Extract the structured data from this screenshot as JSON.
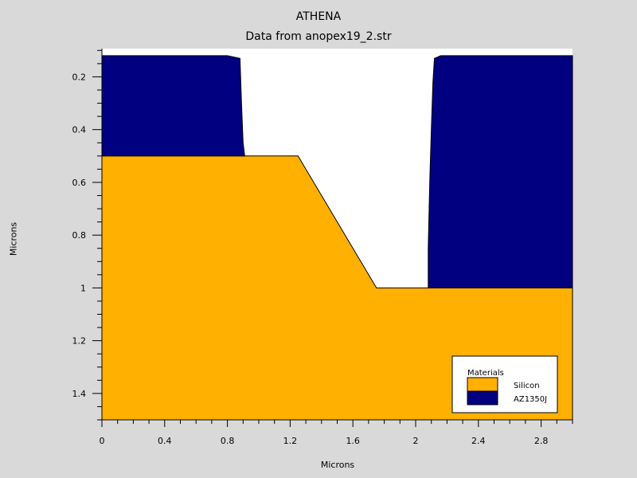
{
  "chart_data": {
    "type": "area",
    "title": "ATHENA",
    "subtitle": "Data from anopex19_2.str",
    "xlabel": "Microns",
    "ylabel": "Microns",
    "xlim": [
      0,
      3.0
    ],
    "ylim": [
      0.093,
      1.5
    ],
    "y_inverted": true,
    "x_ticks": [
      "0",
      "0.4",
      "0.8",
      "1.2",
      "1.6",
      "2",
      "2.4",
      "2.8"
    ],
    "y_ticks": [
      "0.2",
      "0.4",
      "0.6",
      "0.8",
      "1",
      "1.2",
      "1.4"
    ],
    "background_color": "#ffffff",
    "regions": [
      {
        "material": "Silicon",
        "color": "#ffb000",
        "outline": [
          [
            0,
            0.5
          ],
          [
            1.25,
            0.5
          ],
          [
            1.75,
            1.0
          ],
          [
            3.0,
            1.0
          ],
          [
            3.0,
            1.5
          ],
          [
            0,
            1.5
          ]
        ]
      },
      {
        "material": "AZ1350J",
        "color": "#000080",
        "outline": [
          [
            0,
            0.12
          ],
          [
            0.8,
            0.12
          ],
          [
            0.88,
            0.13
          ],
          [
            0.89,
            0.3
          ],
          [
            0.9,
            0.45
          ],
          [
            0.91,
            0.5
          ],
          [
            0,
            0.5
          ]
        ]
      },
      {
        "material": "AZ1350J",
        "color": "#000080",
        "outline": [
          [
            2.08,
            1.0
          ],
          [
            2.08,
            0.85
          ],
          [
            2.09,
            0.6
          ],
          [
            2.1,
            0.4
          ],
          [
            2.11,
            0.22
          ],
          [
            2.12,
            0.13
          ],
          [
            2.16,
            0.12
          ],
          [
            3.0,
            0.12
          ],
          [
            3.0,
            1.0
          ]
        ]
      }
    ],
    "legend": {
      "placement": "bottom-right",
      "title": "Materials",
      "entries": [
        {
          "label": "Silicon",
          "color": "#ffb000"
        },
        {
          "label": "AZ1350J",
          "color": "#000080"
        }
      ]
    }
  }
}
